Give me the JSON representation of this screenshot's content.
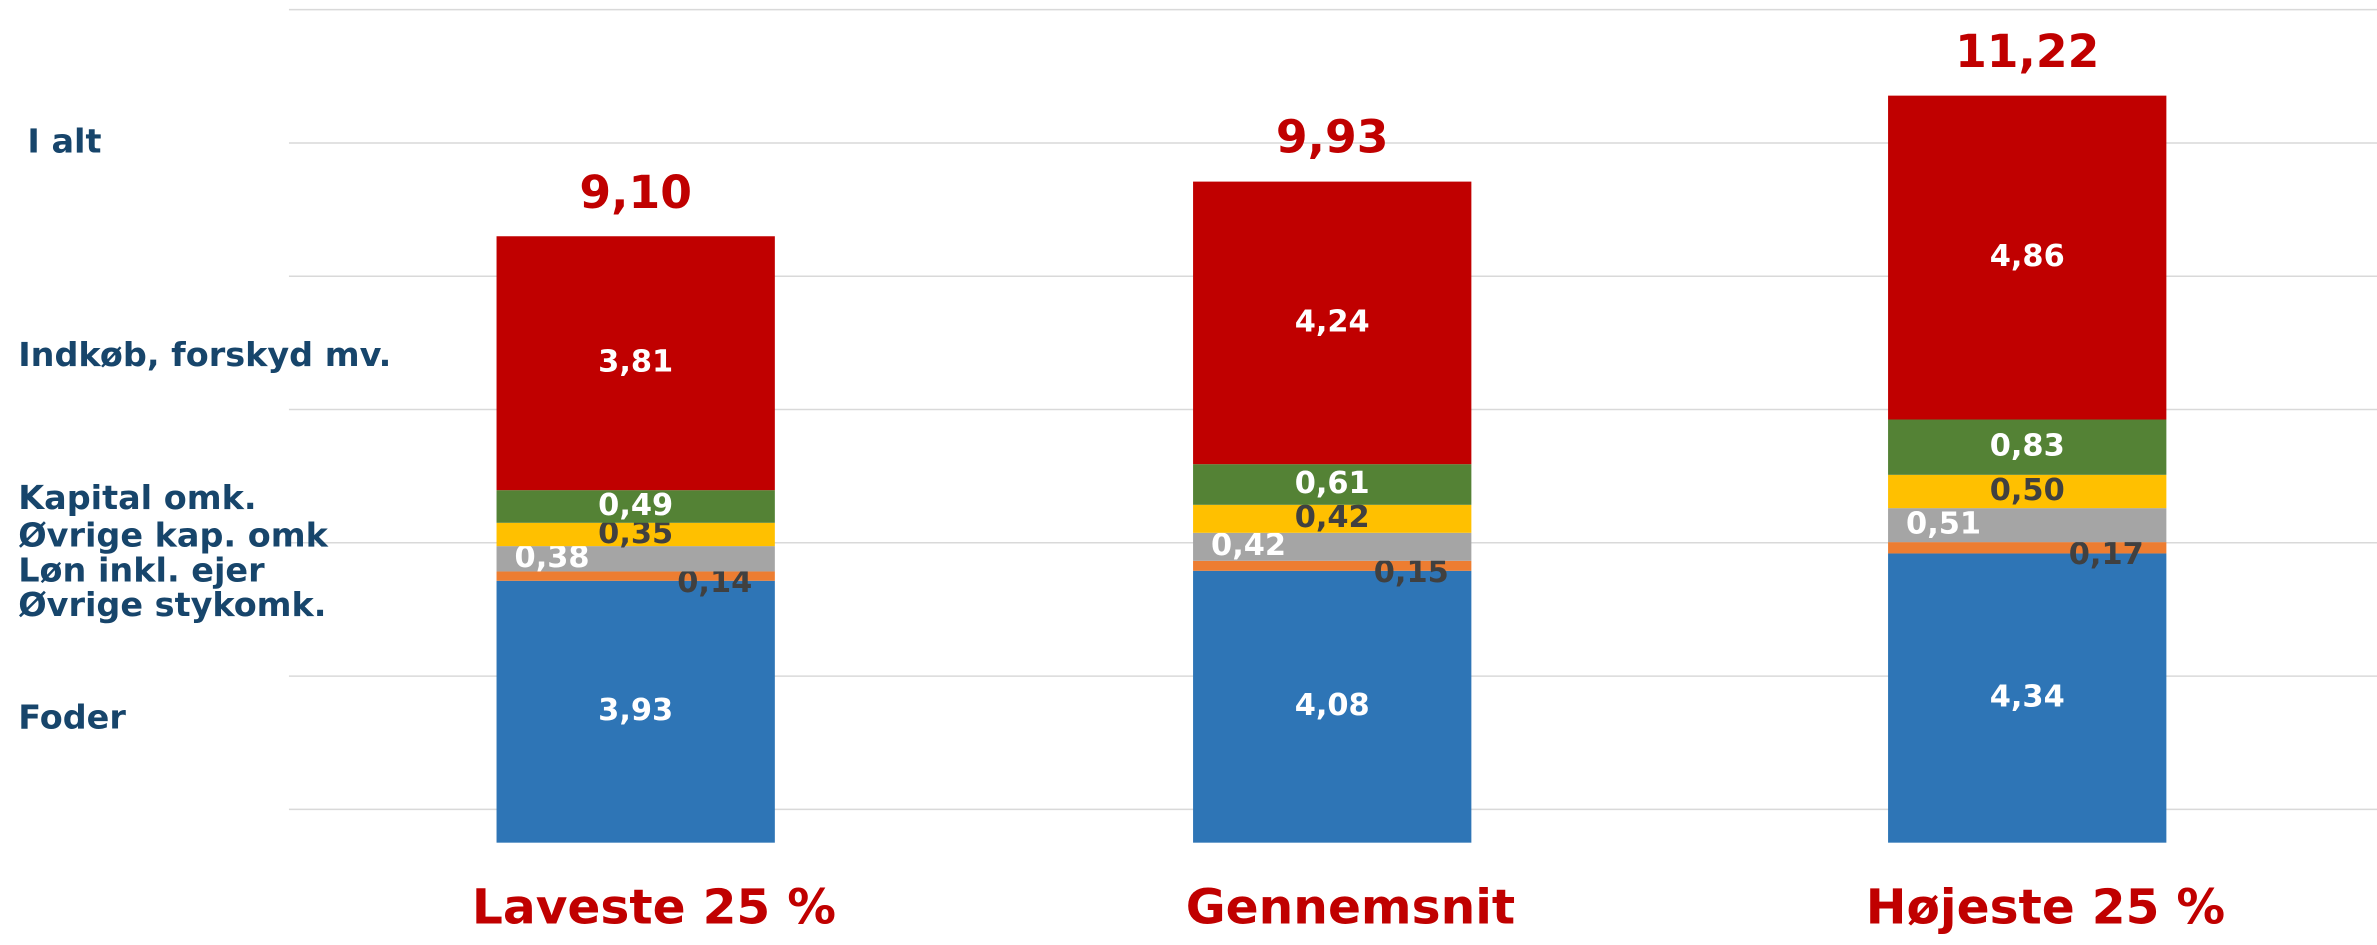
{
  "chart_data": {
    "type": "stacked_bar",
    "categories": [
      "Laveste 25 %",
      "Gennemsnit",
      "Højeste 25 %"
    ],
    "series": [
      {
        "name": "Foder",
        "color": "#2e75b6",
        "values": [
          3.93,
          4.08,
          4.34
        ],
        "value_labels": [
          "3,93",
          "4,08",
          "4,34"
        ]
      },
      {
        "name": "Øvrige stykomk.",
        "color": "#ed7d31",
        "values": [
          0.14,
          0.15,
          0.17
        ],
        "value_labels": [
          "0,14",
          "0,15",
          "0,17"
        ]
      },
      {
        "name": "Løn inkl. ejer",
        "color": "#a5a5a5",
        "values": [
          0.38,
          0.42,
          0.51
        ],
        "value_labels": [
          "0,38",
          "0,42",
          "0,51"
        ]
      },
      {
        "name": "Øvrige kap. omk",
        "color": "#ffc000",
        "values": [
          0.35,
          0.42,
          0.5
        ],
        "value_labels": [
          "0,35",
          "0,42",
          "0,50"
        ]
      },
      {
        "name": "Kapital omk.",
        "color": "#548235",
        "values": [
          0.49,
          0.61,
          0.83
        ],
        "value_labels": [
          "0,49",
          "0,61",
          "0,83"
        ]
      },
      {
        "name": "Indkøb, forskyd mv.",
        "color": "#c00000",
        "values": [
          3.81,
          4.24,
          4.86
        ],
        "value_labels": [
          "3,81",
          "4,24",
          "4,86"
        ]
      }
    ],
    "totals": {
      "name": "I alt",
      "values": [
        9.1,
        9.93,
        11.22
      ],
      "value_labels": [
        "9,10",
        "9,93",
        "11,22"
      ]
    },
    "ylim": [
      0,
      12.6
    ],
    "yticks": [
      0.5,
      2.5,
      4.5,
      6.5,
      8.5,
      10.5,
      12.5
    ],
    "grid": true
  }
}
